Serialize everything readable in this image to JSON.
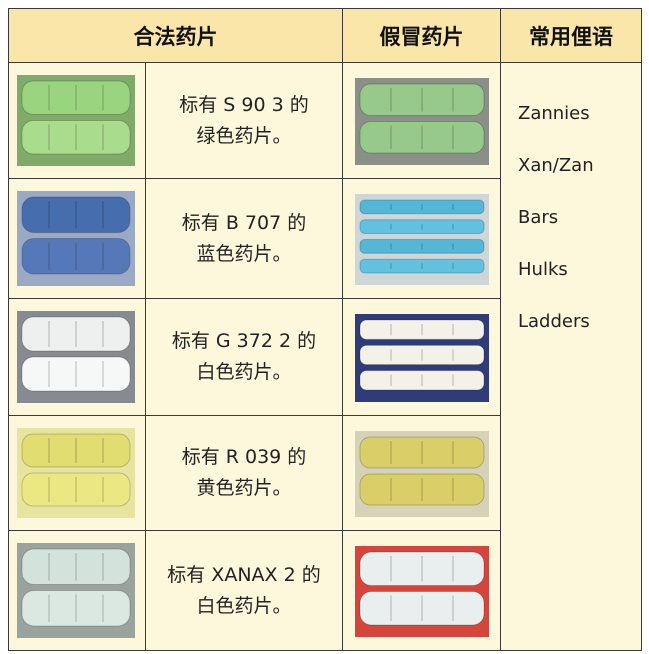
{
  "table": {
    "headers": [
      "合法药片",
      "假冒药片",
      "常用俚语"
    ],
    "rows": [
      {
        "lines": [
          "标有 S 90 3 的",
          "绿色药片。"
        ]
      },
      {
        "lines": [
          "标有 B 707 的",
          "蓝色药片。"
        ]
      },
      {
        "lines": [
          "标有 G 372 2 的",
          "白色药片。"
        ]
      },
      {
        "lines": [
          "标有 R 039 的",
          "黄色药片。"
        ]
      },
      {
        "lines": [
          "标有 XANAX 2 的",
          "白色药片。"
        ]
      }
    ],
    "slang": [
      "Zannies",
      "Xan/Zan",
      "Bars",
      "Hulks",
      "Ladders"
    ]
  }
}
